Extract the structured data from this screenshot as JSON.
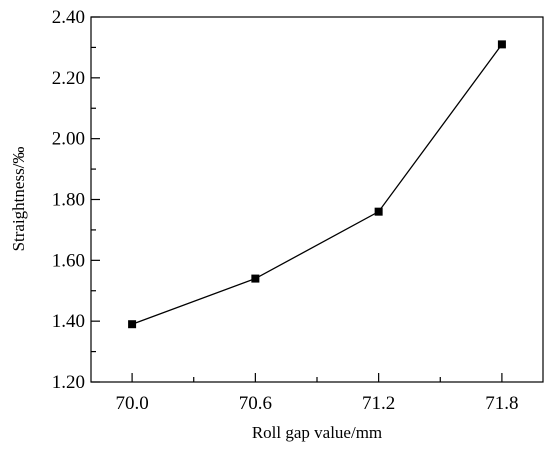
{
  "chart_data": {
    "type": "line",
    "title": "",
    "xlabel": "Roll gap value/mm",
    "ylabel": "Straightness/‰",
    "x": [
      70.0,
      70.6,
      71.2,
      71.8
    ],
    "x_tick_labels": [
      "70.0",
      "70.6",
      "71.2",
      "71.8"
    ],
    "series": [
      {
        "values": [
          1.39,
          1.54,
          1.76,
          2.31
        ],
        "marker": "square",
        "color": "#000000"
      }
    ],
    "xlim": [
      69.8,
      72.0
    ],
    "ylim": [
      1.2,
      2.4
    ],
    "y_ticks": [
      1.2,
      1.4,
      1.6,
      1.8,
      2.0,
      2.2,
      2.4
    ],
    "y_tick_labels": [
      "1.20",
      "1.40",
      "1.60",
      "1.80",
      "2.00",
      "2.20",
      "2.40"
    ],
    "grid": false,
    "legend": "none"
  }
}
